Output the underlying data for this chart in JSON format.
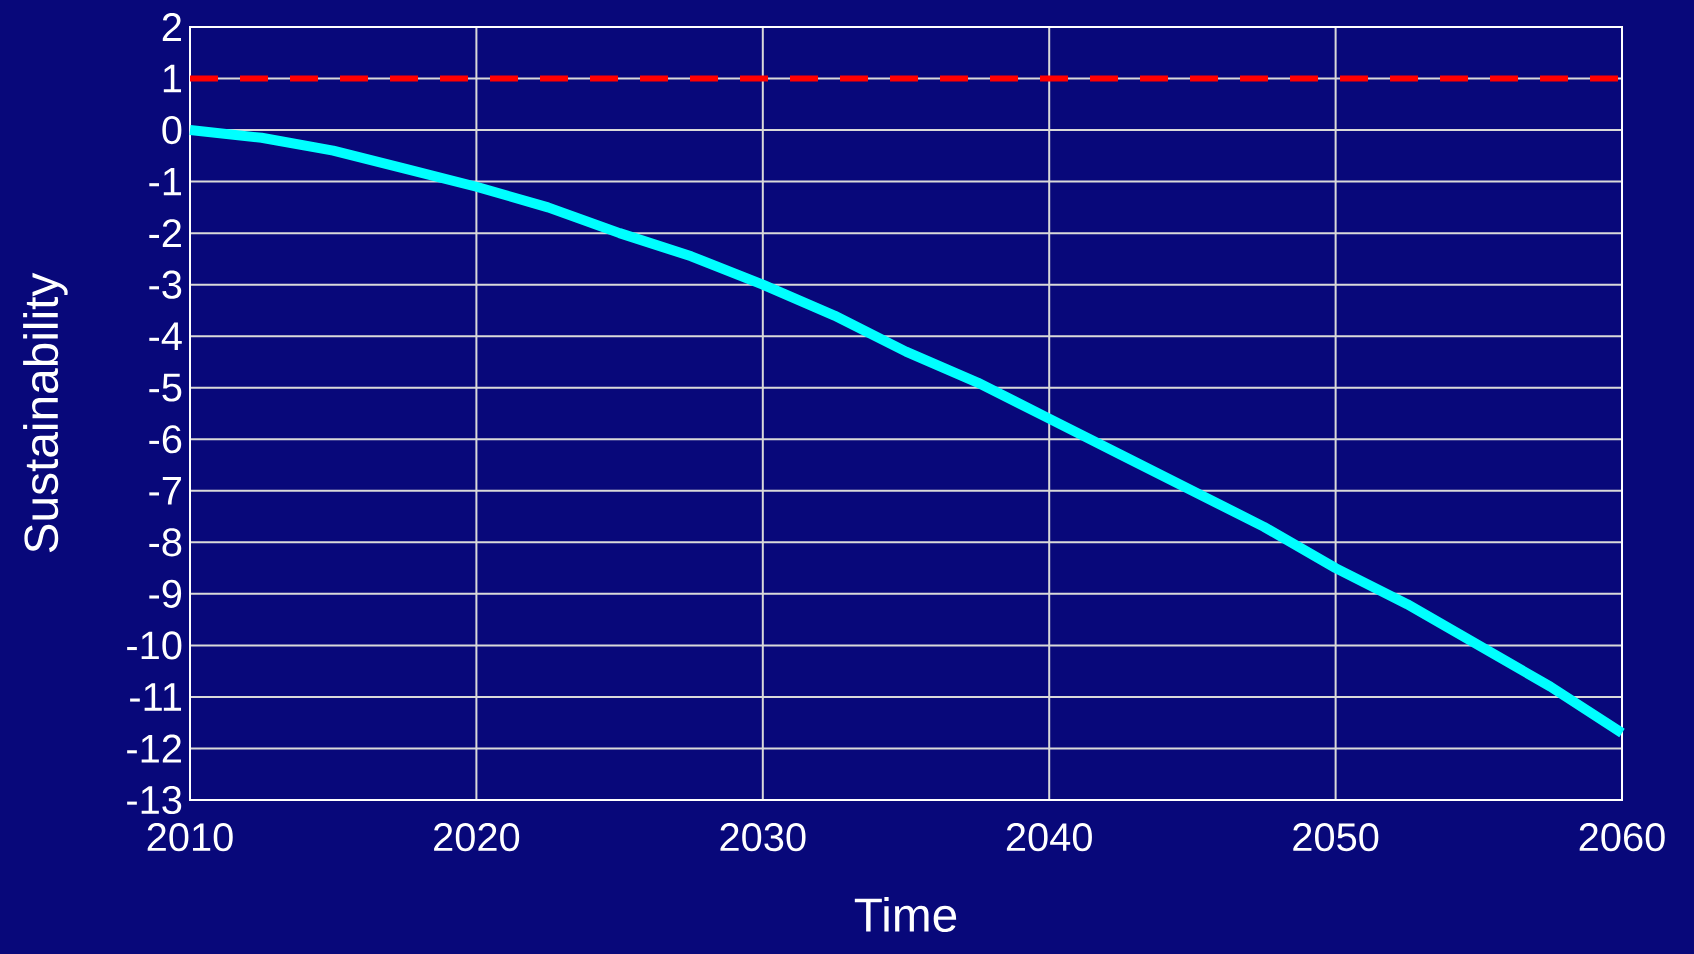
{
  "chart_data": {
    "type": "line",
    "xlabel": "Time",
    "ylabel": "Sustainability",
    "x": [
      2010,
      2012.5,
      2015,
      2017.5,
      2020,
      2022.5,
      2025,
      2027.5,
      2030,
      2032.5,
      2035,
      2037.5,
      2040,
      2042.5,
      2045,
      2047.5,
      2050,
      2052.5,
      2055,
      2057.5,
      2060
    ],
    "series": [
      {
        "color": "#00ffff",
        "values": [
          0,
          -0.15,
          -0.4,
          -0.75,
          -1.1,
          -1.5,
          -2.0,
          -2.45,
          -3.0,
          -3.6,
          -4.3,
          -4.9,
          -5.6,
          -6.3,
          -7.0,
          -7.7,
          -8.5,
          -9.2,
          -10.0,
          -10.8,
          -11.7
        ]
      }
    ],
    "xlim": [
      2010,
      2060
    ],
    "xticks": [
      2010,
      2020,
      2030,
      2040,
      2050,
      2060
    ],
    "ylim": [
      -13,
      2
    ],
    "yticks": [
      -13,
      -12,
      -11,
      -10,
      -9,
      -8,
      -7,
      -6,
      -5,
      -4,
      -3,
      -2,
      -1,
      0,
      1,
      2
    ],
    "ref_lines": [
      {
        "axis": "y",
        "value": 1,
        "color": "#ff0000",
        "line_style": "dashed"
      }
    ],
    "grid": true,
    "marker": "none",
    "line_style": "solid"
  }
}
